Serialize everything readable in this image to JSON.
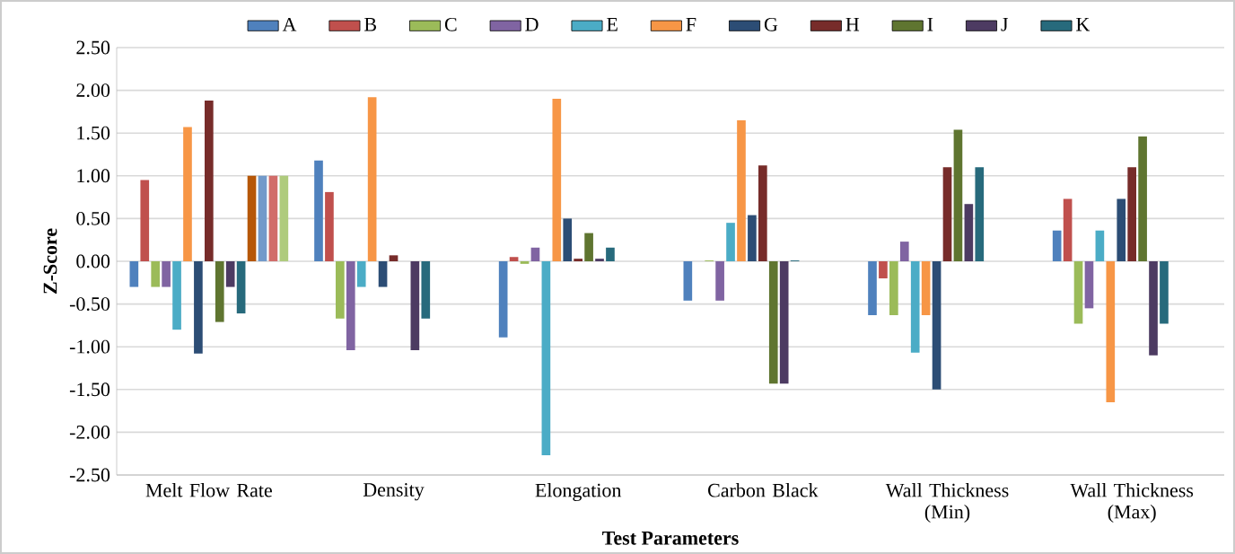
{
  "chart_data": {
    "type": "bar",
    "xlabel": "Test Parameters",
    "ylabel": "Z-Score",
    "categories": [
      "Melt Flow Rate",
      "Density",
      "Elongation",
      "Carbon Black",
      "Wall Thickness (Min)",
      "Wall Thickness (Max)"
    ],
    "series": [
      {
        "name": "A",
        "color": "#4f81bd",
        "values": [
          -0.3,
          1.18,
          -0.89,
          -0.46,
          -0.63,
          0.36
        ]
      },
      {
        "name": "B",
        "color": "#c0504d",
        "values": [
          0.95,
          0.81,
          0.05,
          0,
          -0.2,
          0.73
        ]
      },
      {
        "name": "C",
        "color": "#9bbb59",
        "values": [
          -0.3,
          -0.67,
          -0.03,
          0.01,
          -0.63,
          -0.73
        ]
      },
      {
        "name": "D",
        "color": "#8064a2",
        "values": [
          -0.3,
          -1.04,
          0.16,
          -0.46,
          0.23,
          -0.55
        ]
      },
      {
        "name": "E",
        "color": "#4bacc6",
        "values": [
          -0.8,
          -0.3,
          -2.27,
          0.45,
          -1.07,
          0.36
        ]
      },
      {
        "name": "F",
        "color": "#f79646",
        "values": [
          1.57,
          1.92,
          1.9,
          1.65,
          -0.63,
          -1.65
        ]
      },
      {
        "name": "G",
        "color": "#2c4d75",
        "values": [
          -1.08,
          -0.3,
          0.5,
          0.54,
          -1.5,
          0.73
        ]
      },
      {
        "name": "H",
        "color": "#772c2a",
        "values": [
          1.88,
          0.07,
          0.03,
          1.12,
          1.1,
          1.1
        ]
      },
      {
        "name": "I",
        "color": "#5f7530",
        "values": [
          -0.71,
          0,
          0.33,
          -1.43,
          1.54,
          1.46
        ]
      },
      {
        "name": "J",
        "color": "#4d3b62",
        "values": [
          -0.3,
          -1.04,
          0.03,
          -1.43,
          0.67,
          -1.1
        ]
      },
      {
        "name": "K",
        "color": "#276a7c",
        "values": [
          -0.61,
          -0.67,
          0.16,
          0.01,
          1.1,
          -0.73
        ]
      },
      {
        "color": "#b65708",
        "values": [
          1.0,
          null,
          null,
          null,
          null,
          null
        ]
      },
      {
        "color": "#729aca",
        "values": [
          1.0,
          null,
          null,
          null,
          null,
          null
        ]
      },
      {
        "color": "#d16d6a",
        "values": [
          1.0,
          null,
          null,
          null,
          null,
          null
        ]
      },
      {
        "color": "#afcb7d",
        "values": [
          1.0,
          null,
          null,
          null,
          null,
          null
        ]
      }
    ],
    "ylim": [
      -2.5,
      2.5
    ],
    "yticks": [
      {
        "value": -2.5,
        "label": "-2.50"
      },
      {
        "value": -2.0,
        "label": "-2.00"
      },
      {
        "value": -1.5,
        "label": "-1.50"
      },
      {
        "value": -1.0,
        "label": "-1.00"
      },
      {
        "value": -0.5,
        "label": "-0.50"
      },
      {
        "value": 0,
        "label": "0.00"
      },
      {
        "value": 0.5,
        "label": "0.50"
      },
      {
        "value": 1.0,
        "label": "1.00"
      },
      {
        "value": 1.5,
        "label": "1.50"
      },
      {
        "value": 2.0,
        "label": "2.00"
      },
      {
        "value": 2.5,
        "label": "2.50"
      }
    ],
    "grid": "y",
    "legend": "top"
  }
}
